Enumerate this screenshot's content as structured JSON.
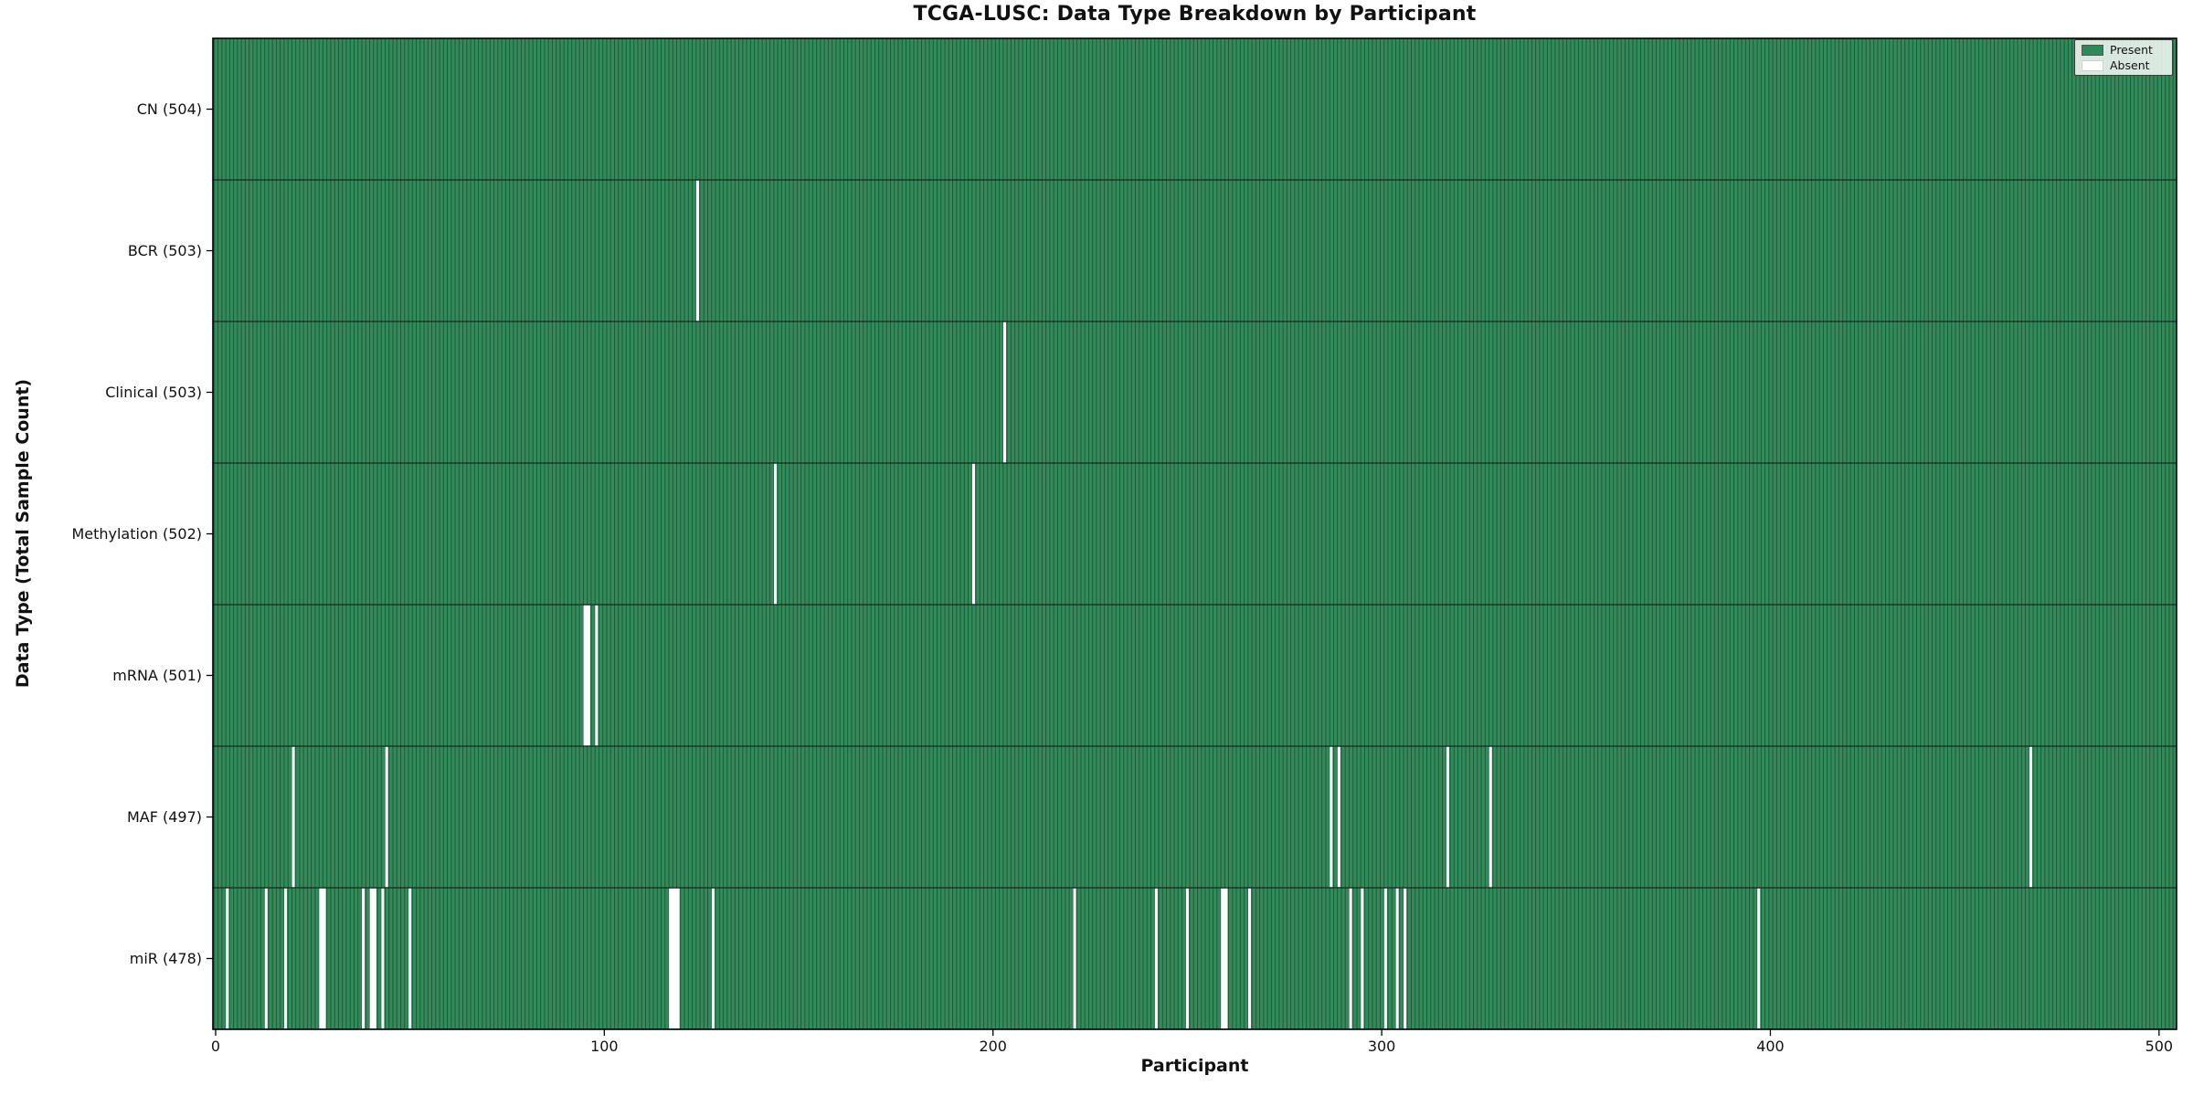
{
  "figure": {
    "title": "TCGA-LUSC: Data Type Breakdown by Participant",
    "xlabel": "Participant",
    "ylabel": "Data Type (Total Sample Count)"
  },
  "legend": {
    "entries": [
      {
        "label": "Present",
        "color": "#2e8b57"
      },
      {
        "label": "Absent",
        "color": "#ffffff"
      }
    ],
    "position": "upper right"
  },
  "colors": {
    "present": "#338a5a",
    "absent": "#ffffff",
    "bar_edge": "#1d5434",
    "row_divider": "#131313",
    "axis": "#000000",
    "background": "#ffffff"
  },
  "chart_data": {
    "type": "heatmap",
    "title": "TCGA-LUSC: Data Type Breakdown by Participant",
    "xlabel": "Participant",
    "ylabel": "Data Type (Total Sample Count)",
    "legend": [
      "Present",
      "Absent"
    ],
    "legend_position": "upper right",
    "total_participants": 504,
    "x_ticks": [
      0,
      100,
      200,
      300,
      400,
      500
    ],
    "xlim": [
      -0.7,
      504.5
    ],
    "grid": false,
    "rows": [
      {
        "label": "CN (504)",
        "name": "CN",
        "present_count": 504,
        "absent_participants": []
      },
      {
        "label": "BCR (503)",
        "name": "BCR",
        "present_count": 503,
        "absent_participants": [
          124
        ]
      },
      {
        "label": "Clinical (503)",
        "name": "Clinical",
        "present_count": 503,
        "absent_participants": [
          203
        ]
      },
      {
        "label": "Methylation (502)",
        "name": "Methylation",
        "present_count": 502,
        "absent_participants": [
          144,
          195
        ]
      },
      {
        "label": "mRNA (501)",
        "name": "mRNA",
        "present_count": 501,
        "absent_participants": [
          95,
          96,
          98
        ]
      },
      {
        "label": "MAF (497)",
        "name": "MAF",
        "present_count": 497,
        "absent_participants": [
          20,
          44,
          287,
          289,
          317,
          328,
          467
        ]
      },
      {
        "label": "miR (478)",
        "name": "miR",
        "present_count": 478,
        "absent_participants": [
          3,
          13,
          18,
          27,
          28,
          38,
          40,
          41,
          43,
          50,
          117,
          118,
          119,
          128,
          221,
          242,
          250,
          259,
          260,
          266,
          292,
          295,
          301,
          304,
          306,
          397
        ]
      }
    ]
  }
}
